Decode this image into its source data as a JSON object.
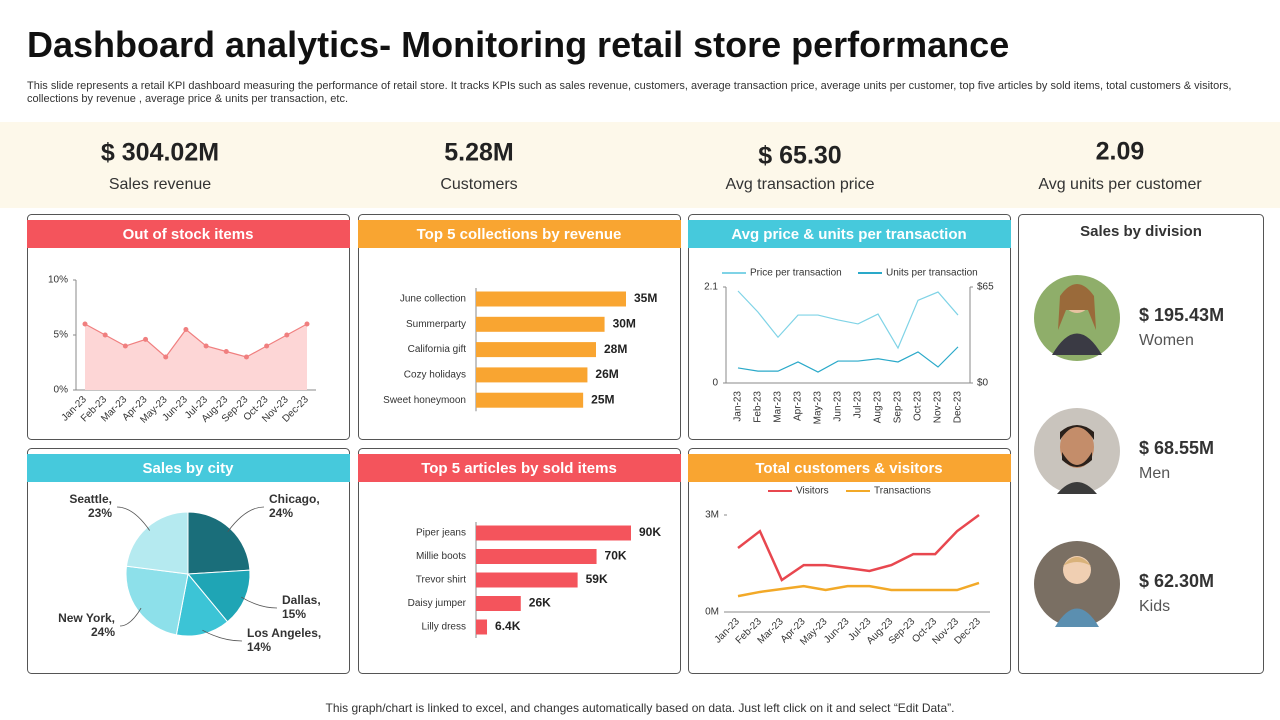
{
  "header": {
    "title": "Dashboard analytics- Monitoring retail store performance",
    "description": "This slide represents a retail KPI dashboard measuring the performance of retail store. It tracks KPIs such as sales revenue, customers, average transaction price, average units per customer, top five  articles by sold items, total customers & visitors, collections by revenue ,  average price & units per transaction, etc."
  },
  "kpis": [
    {
      "value": "$ 304.02M",
      "label": "Sales revenue"
    },
    {
      "value": "5.28M",
      "label": "Customers"
    },
    {
      "value": "$ 65.30",
      "label": "Avg transaction price"
    },
    {
      "value": "2.09",
      "label": "Avg units per customer"
    }
  ],
  "chart_data": [
    {
      "type": "line",
      "title": "Out of stock items",
      "area": true,
      "color": "#f07f7f",
      "categories": [
        "Jan-23",
        "Feb-23",
        "Mar-23",
        "Apr-23",
        "May-23",
        "Jun-23",
        "Jul-23",
        "Aug-23",
        "Sep-23",
        "Oct-23",
        "Nov-23",
        "Dec-23"
      ],
      "values": [
        6,
        5,
        4,
        4.6,
        3,
        5.5,
        4,
        3.5,
        3,
        4,
        5,
        6
      ],
      "ylim": [
        0,
        10
      ],
      "yticks": [
        {
          "value": 0,
          "label": "0%"
        },
        {
          "value": 5,
          "label": "5%"
        },
        {
          "value": 10,
          "label": "10%"
        }
      ]
    },
    {
      "type": "hbar",
      "title": "Top 5 collections by revenue",
      "color": "#f9a531",
      "categories": [
        "June collection",
        "Summerparty",
        "California gift",
        "Cozy holidays",
        "Sweet honeymoon"
      ],
      "values": [
        35,
        30,
        28,
        26,
        25
      ],
      "value_labels": [
        "35M",
        "30M",
        "28M",
        "26M",
        "25M"
      ]
    },
    {
      "type": "line",
      "title": "Avg price & units per transaction",
      "categories": [
        "Jan-23",
        "Feb-23",
        "Mar-23",
        "Apr-23",
        "May-23",
        "Jun-23",
        "Jul-23",
        "Aug-23",
        "Sep-23",
        "Oct-23",
        "Nov-23",
        "Dec-23"
      ],
      "series": [
        {
          "name": "Price per transaction",
          "color": "#7fd3e6",
          "axis": "y2",
          "values": [
            62.3,
            48,
            31,
            46,
            46,
            42.7,
            40,
            46.7,
            23.7,
            56,
            61.6,
            46
          ]
        },
        {
          "name": "Units per transaction",
          "color": "#2aa9c9",
          "values": [
            0.33,
            0.26,
            0.26,
            0.46,
            0.24,
            0.48,
            0.48,
            0.53,
            0.46,
            0.68,
            0.35,
            0.79
          ]
        }
      ],
      "ylim": [
        0,
        2.1
      ],
      "yticks": [
        0,
        2.1
      ],
      "y2lim": [
        0,
        65
      ],
      "y2ticks": [
        {
          "value": 0,
          "label": "$0"
        },
        {
          "value": 65,
          "label": "$65"
        }
      ]
    },
    {
      "type": "pie",
      "title": "Sales by city",
      "categories": [
        "Chicago,",
        "Dallas,",
        "Los Angeles,",
        "New York,",
        "Seattle,"
      ],
      "values": [
        24,
        15,
        14,
        24,
        23
      ],
      "value_labels": [
        "24%",
        "15%",
        "14%",
        "24%",
        "23%"
      ],
      "colors": [
        "#1a6e7a",
        "#1fa5b5",
        "#3cc4d6",
        "#8de0ea",
        "#b5eaf0"
      ]
    },
    {
      "type": "hbar",
      "title": "Top 5 articles by sold items",
      "color": "#f4545c",
      "categories": [
        "Piper jeans",
        "Millie boots",
        "Trevor shirt",
        "Daisy jumper",
        "Lilly dress"
      ],
      "values": [
        90,
        70,
        59,
        26,
        6.4
      ],
      "value_labels": [
        "90K",
        "70K",
        "59K",
        "26K",
        "6.4K"
      ]
    },
    {
      "type": "line",
      "title": "Total customers & visitors",
      "categories": [
        "Jan-23",
        "Feb-23",
        "Mar-23",
        "Apr-23",
        "May-23",
        "Jun-23",
        "Jul-23",
        "Aug-23",
        "Sep-23",
        "Oct-23",
        "Nov-23",
        "Dec-23"
      ],
      "series": [
        {
          "name": "Visitors",
          "color": "#e8474f",
          "values": [
            1.98,
            2.5,
            0.99,
            1.45,
            1.45,
            1.36,
            1.27,
            1.45,
            1.79,
            1.79,
            2.5,
            3.0
          ]
        },
        {
          "name": "Transactions",
          "color": "#f2a928",
          "values": [
            0.49,
            0.62,
            0.71,
            0.8,
            0.68,
            0.8,
            0.8,
            0.68,
            0.68,
            0.68,
            0.68,
            0.9
          ]
        }
      ],
      "ylim": [
        0,
        3
      ],
      "yticks": [
        {
          "value": 0,
          "label": "0M"
        },
        {
          "value": 3,
          "label": "3M"
        }
      ]
    }
  ],
  "division": {
    "title": "Sales by division",
    "items": [
      {
        "value": "$ 195.43M",
        "label": "Women"
      },
      {
        "value": "$ 68.55M",
        "label": "Men"
      },
      {
        "value": "$ 62.30M",
        "label": "Kids"
      }
    ]
  },
  "footer": "This graph/chart is linked to excel,  and changes automatically based on data. Just left click on it and select “Edit Data”."
}
